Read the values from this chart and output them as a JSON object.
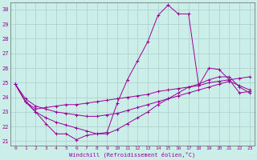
{
  "xlabel": "Windchill (Refroidissement éolien,°C)",
  "background_color": "#cceee8",
  "grid_color": "#aacccc",
  "line_color": "#990099",
  "spine_color": "#666666",
  "xlim": [
    -0.5,
    23.5
  ],
  "ylim": [
    20.7,
    30.5
  ],
  "yticks": [
    21,
    22,
    23,
    24,
    25,
    26,
    27,
    28,
    29,
    30
  ],
  "xticks": [
    0,
    1,
    2,
    3,
    4,
    5,
    6,
    7,
    8,
    9,
    10,
    11,
    12,
    13,
    14,
    15,
    16,
    17,
    18,
    19,
    20,
    21,
    22,
    23
  ],
  "series1_x": [
    0,
    1,
    2,
    3,
    4,
    5,
    6,
    7,
    8,
    9,
    10,
    11,
    12,
    13,
    14,
    15,
    16,
    17,
    18,
    19,
    20,
    21,
    22,
    23
  ],
  "series1_y": [
    24.9,
    23.7,
    23.0,
    22.2,
    21.5,
    21.5,
    21.1,
    21.4,
    21.5,
    21.6,
    23.6,
    25.2,
    26.5,
    27.8,
    29.6,
    30.3,
    29.7,
    29.7,
    24.8,
    26.0,
    25.9,
    25.2,
    24.3,
    24.4
  ],
  "series2_x": [
    0,
    1,
    2,
    3,
    4,
    5,
    6,
    7,
    8,
    9,
    10,
    11,
    12,
    13,
    14,
    15,
    16,
    17,
    18,
    19,
    20,
    21,
    22,
    23
  ],
  "series2_y": [
    24.9,
    23.7,
    23.2,
    23.3,
    23.4,
    23.5,
    23.5,
    23.6,
    23.7,
    23.8,
    23.9,
    24.0,
    24.1,
    24.2,
    24.4,
    24.5,
    24.6,
    24.7,
    24.8,
    25.0,
    25.1,
    25.2,
    25.3,
    25.4
  ],
  "series3_x": [
    0,
    1,
    2,
    3,
    4,
    5,
    6,
    7,
    8,
    9,
    10,
    11,
    12,
    13,
    14,
    15,
    16,
    17,
    18,
    19,
    20,
    21,
    22,
    23
  ],
  "series3_y": [
    24.9,
    23.7,
    23.0,
    22.6,
    22.3,
    22.1,
    21.9,
    21.7,
    21.5,
    21.5,
    21.8,
    22.2,
    22.6,
    23.0,
    23.5,
    23.9,
    24.3,
    24.7,
    24.9,
    25.2,
    25.4,
    25.4,
    24.7,
    24.3
  ],
  "series4_x": [
    0,
    1,
    2,
    3,
    4,
    5,
    6,
    7,
    8,
    9,
    10,
    11,
    12,
    13,
    14,
    15,
    16,
    17,
    18,
    19,
    20,
    21,
    22,
    23
  ],
  "series4_y": [
    24.9,
    23.9,
    23.4,
    23.2,
    23.0,
    22.9,
    22.8,
    22.7,
    22.7,
    22.8,
    22.9,
    23.1,
    23.3,
    23.5,
    23.7,
    23.9,
    24.1,
    24.3,
    24.5,
    24.7,
    24.9,
    25.1,
    24.8,
    24.5
  ]
}
